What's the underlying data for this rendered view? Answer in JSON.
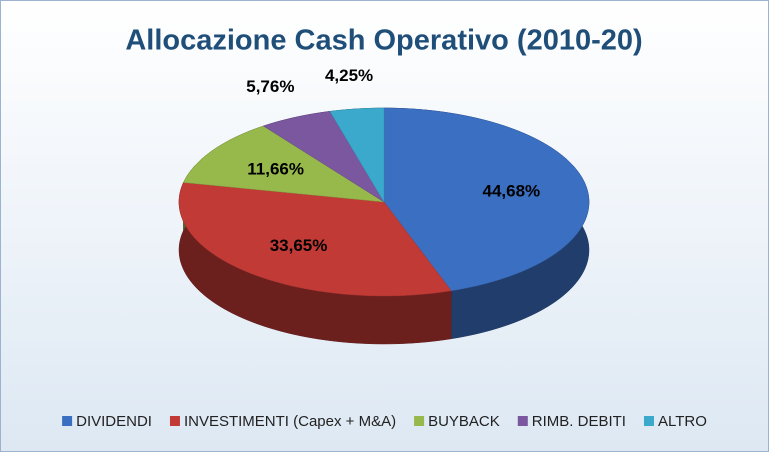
{
  "chart_data": {
    "type": "pie",
    "title": "Allocazione Cash Operativo (2010-20)",
    "categories": [
      "DIVIDENDI",
      "INVESTIMENTI (Capex + M&A)",
      "BUYBACK",
      "RIMB. DEBITI",
      "ALTRO"
    ],
    "values": [
      44.68,
      33.65,
      11.66,
      5.76,
      4.25
    ],
    "value_labels": [
      "44,68%",
      "33,65%",
      "11,66%",
      "5,76%",
      "4,25%"
    ],
    "colors": [
      "#3b6fc2",
      "#c23a35",
      "#97b84b",
      "#7a579f",
      "#3aa9cb"
    ],
    "legend": "bottom"
  }
}
